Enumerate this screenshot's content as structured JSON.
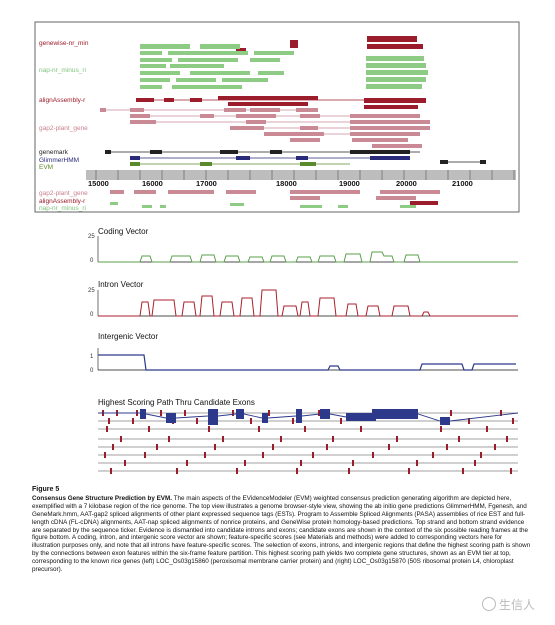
{
  "browser": {
    "track_labels_top": [
      {
        "text": "genewise-nr_min",
        "color": "#9b1c2a"
      },
      {
        "text": "nap-nr_minus_ri",
        "color": "#7cc47a"
      },
      {
        "text": "alignAssembly-r",
        "color": "#9b1c2a"
      },
      {
        "text": "gap2-plant_gene",
        "color": "#c8838f"
      },
      {
        "text": "genemark",
        "color": "#222222"
      },
      {
        "text": "GlimmerHMM",
        "color": "#2a2a7a"
      },
      {
        "text": "EVM",
        "color": "#5a8a2a"
      }
    ],
    "track_labels_bottom": [
      {
        "text": "gap2-plant_gene",
        "color": "#c8838f"
      },
      {
        "text": "alignAssembly-r",
        "color": "#9b1c2a"
      },
      {
        "text": "nap-nr_minus_ri",
        "color": "#7cc47a"
      }
    ],
    "axis_ticks": [
      "15000",
      "16000",
      "17000",
      "18000",
      "19000",
      "20000",
      "21000"
    ]
  },
  "vectors": {
    "coding": {
      "title": "Coding Vector",
      "ticks": [
        "25",
        "0"
      ]
    },
    "intron": {
      "title": "Intron Vector",
      "ticks": [
        "25",
        "0"
      ]
    },
    "intergenic": {
      "title": "Intergenic Vector",
      "ticks": [
        "1",
        "0"
      ]
    }
  },
  "path_panel": {
    "title": "Highest Scoring Path Thru Candidate Exons"
  },
  "caption": {
    "figure_number": "Figure 5",
    "title": "Consensus Gene Structure Prediction by EVM.",
    "body": "The main aspects of the EVidenceModeler (EVM) weighted consensus prediction generating algorithm are depicted here, exemplified with a 7 kilobase region of the rice genome. The top view illustrates a genome browser-style view, showing the ab initio gene predictions GlimmerHMM, Fgenesh, and GeneMark.hmm, AAT-gap2 spliced alignments of other plant expressed sequence tags (ESTs). Program to Assemble Spliced Alignments (PASA) assemblies of rice EST and full-length cDNA (FL-cDNA) alignments, AAT-nap spliced alignments of nonrice proteins, and GeneWise protein homology-based predictions. Top strand and bottom strand evidence are separated by the sequence ticker. Evidence is dismantled into candidate introns and exons; candidate exons are shown in the context of the six possible reading frames at the figure bottom. A coding, intron, and intergenic score vector are shown; feature-specific scores (see Materials and methods) were added to corresponding vectors here for illustration purposes only, and note that all introns have feature-specific scores. The selection of exons, introns, and intergenic regions that define the highest scoring path is shown by the connections between exon features within the six-frame feature partition. This highest scoring path yields two complete gene structures, shown as an EVM tier at top, corresponding to the known rice genes (left) LOC_Os03g15860 (peroxisomal membrane carrier protein) and (right) LOC_Os03g15870 (50S ribosomal protein L4, chloroplast precursor)."
  },
  "watermark": {
    "text": "生信人"
  },
  "colors": {
    "dark_red": "#9b1c2a",
    "pink": "#c98a96",
    "green": "#8ecb84",
    "navy": "#2d3a8c",
    "gray_axis": "#bdbdbd"
  }
}
